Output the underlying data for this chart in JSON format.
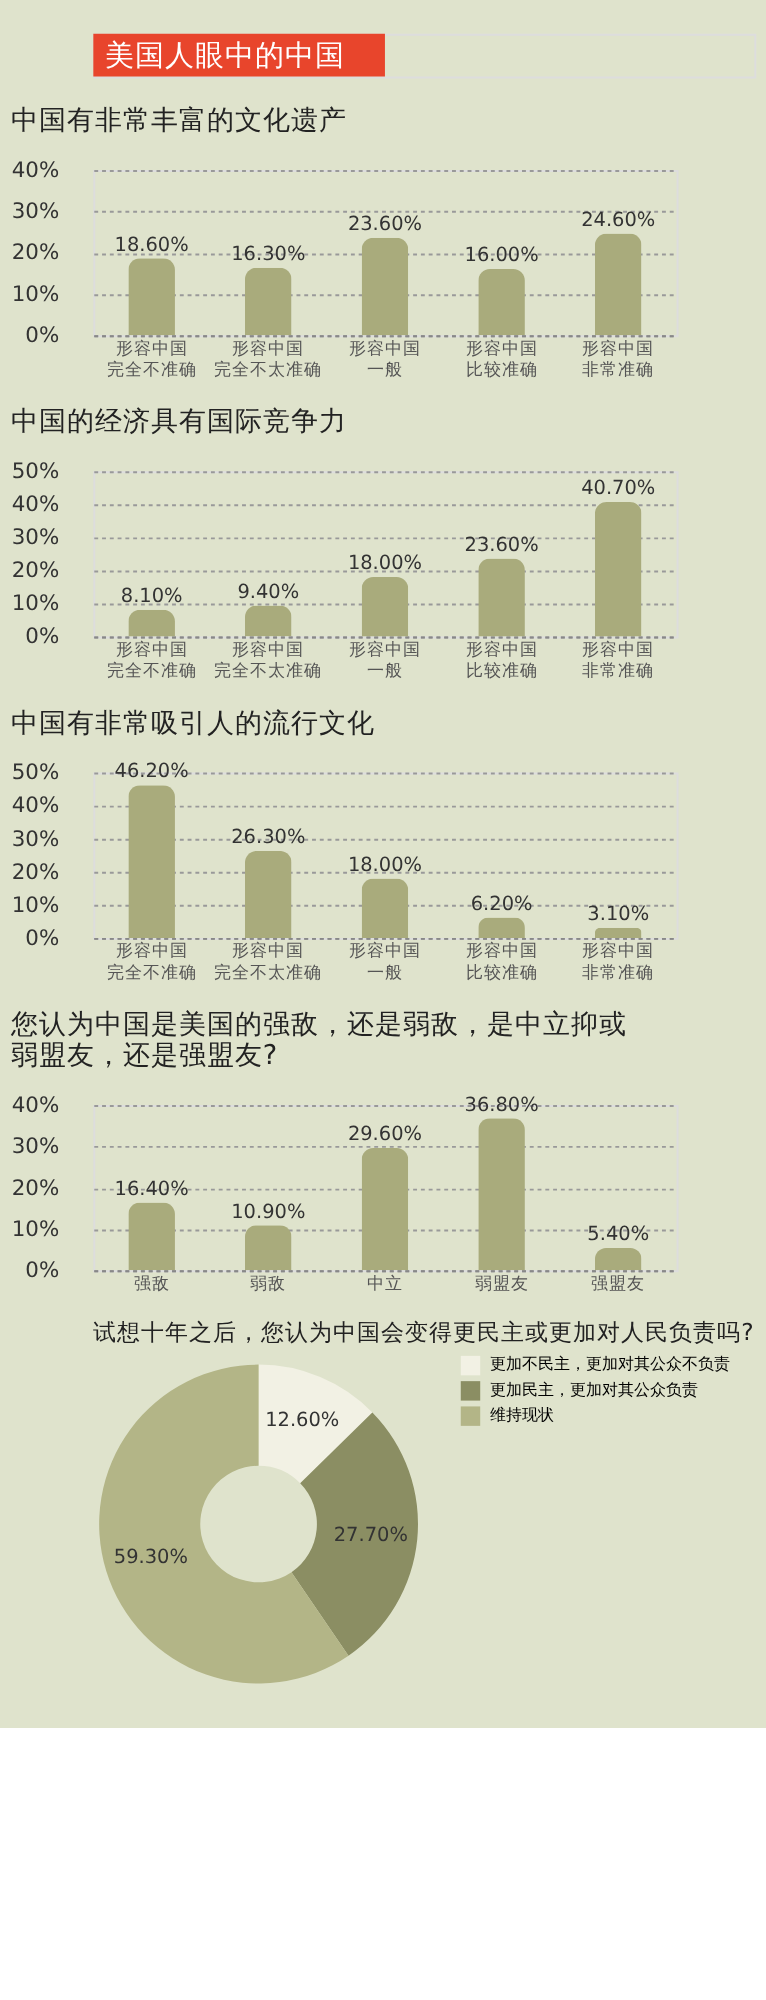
{
  "chart_data": [
    {
      "type": "other",
      "title": "美国人眼中的中国"
    },
    {
      "type": "bar",
      "title": "中国有非常丰富的文化遗产",
      "categories": [
        "形容中国完全不准确",
        "形容中国完全不太准确",
        "形容中国一般",
        "形容中国比较准确",
        "形容中国非常准确"
      ],
      "values": [
        18.6,
        16.3,
        23.6,
        16.0,
        24.6
      ],
      "value_labels": [
        "18.60%",
        "16.30%",
        "23.60%",
        "16.00%",
        "24.60%"
      ],
      "color": "#a9ab7c",
      "ylim": [
        0,
        40
      ],
      "yticks": [
        {
          "value": 0,
          "label": "0%"
        },
        {
          "value": 10,
          "label": "10%"
        },
        {
          "value": 20,
          "label": "20%"
        },
        {
          "value": 30,
          "label": "30%"
        },
        {
          "value": 40,
          "label": "40%"
        }
      ],
      "grid": "y"
    },
    {
      "type": "bar",
      "title": "中国的经济具有国际竞争力",
      "categories": [
        "形容中国完全不准确",
        "形容中国完全不太准确",
        "形容中国一般",
        "形容中国比较准确",
        "形容中国非常准确"
      ],
      "values": [
        8.1,
        9.4,
        18.0,
        23.6,
        40.7
      ],
      "value_labels": [
        "8.10%",
        "9.40%",
        "18.00%",
        "23.60%",
        "40.70%"
      ],
      "color": "#a9ab7c",
      "ylim": [
        0,
        50
      ],
      "yticks": [
        {
          "value": 0,
          "label": "0%"
        },
        {
          "value": 10,
          "label": "10%"
        },
        {
          "value": 20,
          "label": "20%"
        },
        {
          "value": 30,
          "label": "30%"
        },
        {
          "value": 40,
          "label": "40%"
        },
        {
          "value": 50,
          "label": "50%"
        }
      ],
      "grid": "y"
    },
    {
      "type": "bar",
      "title": "中国有非常吸引人的流行文化",
      "categories": [
        "形容中国完全不准确",
        "形容中国完全不太准确",
        "形容中国一般",
        "形容中国比较准确",
        "形容中国非常准确"
      ],
      "values": [
        46.2,
        26.3,
        18.0,
        6.2,
        3.1
      ],
      "value_labels": [
        "46.20%",
        "26.30%",
        "18.00%",
        "6.20%",
        "3.10%"
      ],
      "color": "#a9ab7c",
      "ylim": [
        0,
        50
      ],
      "yticks": [
        {
          "value": 0,
          "label": "0%"
        },
        {
          "value": 10,
          "label": "10%"
        },
        {
          "value": 20,
          "label": "20%"
        },
        {
          "value": 30,
          "label": "30%"
        },
        {
          "value": 40,
          "label": "40%"
        },
        {
          "value": 50,
          "label": "50%"
        }
      ],
      "grid": "y"
    },
    {
      "type": "bar",
      "title": "您认为中国是美国的强敌，还是弱敌，是中立抑或弱盟友，还是强盟友?",
      "categories": [
        "强敌",
        "弱敌",
        "中立",
        "弱盟友",
        "强盟友"
      ],
      "values": [
        16.4,
        10.9,
        29.6,
        36.8,
        5.4
      ],
      "value_labels": [
        "16.40%",
        "10.90%",
        "29.60%",
        "36.80%",
        "5.40%"
      ],
      "color": "#a9ab7c",
      "ylim": [
        0,
        40
      ],
      "yticks": [
        {
          "value": 0,
          "label": "0%"
        },
        {
          "value": 10,
          "label": "10%"
        },
        {
          "value": 20,
          "label": "20%"
        },
        {
          "value": 30,
          "label": "30%"
        },
        {
          "value": 40,
          "label": "40%"
        }
      ],
      "grid": "y"
    },
    {
      "type": "donut",
      "title": "试想十年之后，您认为中国会变得更民主或更加对人民负责吗?",
      "categories": [
        "更加不民主，更加对其公众不负责",
        "更加民主，更加对其公众负责",
        "维持现状"
      ],
      "values": [
        12.6,
        27.7,
        59.3
      ],
      "value_labels": [
        "12.60%",
        "27.70%",
        "59.30%"
      ],
      "colors": [
        "#f2f1e4",
        "#8b8e63",
        "#b3b587"
      ],
      "legend": "right"
    }
  ]
}
